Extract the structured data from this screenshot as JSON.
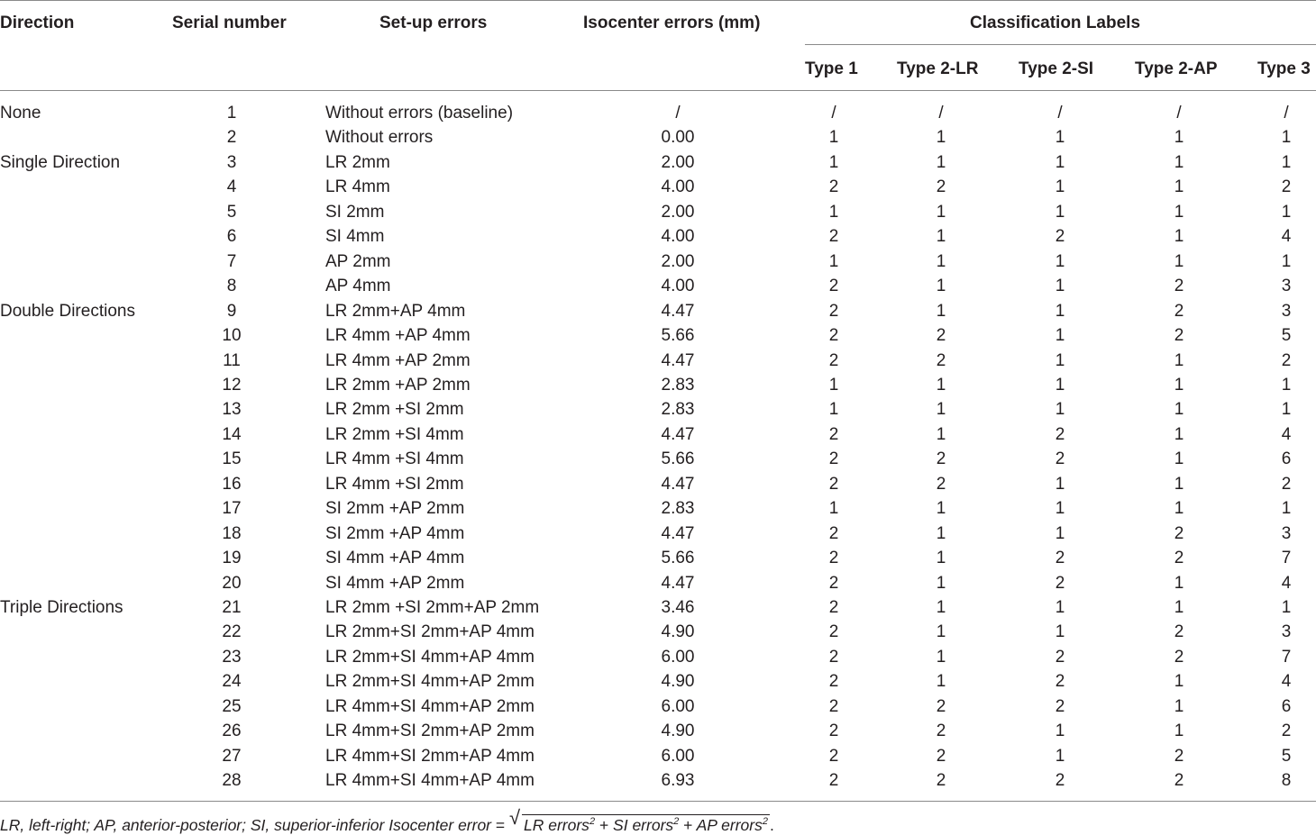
{
  "table": {
    "headers": {
      "direction": "Direction",
      "serial": "Serial number",
      "setup": "Set-up errors",
      "iso": "Isocenter errors (mm)",
      "classification": "Classification Labels",
      "type1": "Type 1",
      "type2lr": "Type 2-LR",
      "type2si": "Type 2-SI",
      "type2ap": "Type 2-AP",
      "type3": "Type 3"
    },
    "rows": [
      {
        "dir": "None",
        "sn": "1",
        "err": "Without errors (baseline)",
        "iso": "/",
        "t1": "/",
        "lr": "/",
        "si": "/",
        "ap": "/",
        "t3": "/"
      },
      {
        "dir": "",
        "sn": "2",
        "err": "Without errors",
        "iso": "0.00",
        "t1": "1",
        "lr": "1",
        "si": "1",
        "ap": "1",
        "t3": "1"
      },
      {
        "dir": "Single Direction",
        "sn": "3",
        "err": "LR 2mm",
        "iso": "2.00",
        "t1": "1",
        "lr": "1",
        "si": "1",
        "ap": "1",
        "t3": "1"
      },
      {
        "dir": "",
        "sn": "4",
        "err": "LR 4mm",
        "iso": "4.00",
        "t1": "2",
        "lr": "2",
        "si": "1",
        "ap": "1",
        "t3": "2"
      },
      {
        "dir": "",
        "sn": "5",
        "err": "SI 2mm",
        "iso": "2.00",
        "t1": "1",
        "lr": "1",
        "si": "1",
        "ap": "1",
        "t3": "1"
      },
      {
        "dir": "",
        "sn": "6",
        "err": "SI 4mm",
        "iso": "4.00",
        "t1": "2",
        "lr": "1",
        "si": "2",
        "ap": "1",
        "t3": "4"
      },
      {
        "dir": "",
        "sn": "7",
        "err": "AP 2mm",
        "iso": "2.00",
        "t1": "1",
        "lr": "1",
        "si": "1",
        "ap": "1",
        "t3": "1"
      },
      {
        "dir": "",
        "sn": "8",
        "err": "AP 4mm",
        "iso": "4.00",
        "t1": "2",
        "lr": "1",
        "si": "1",
        "ap": "2",
        "t3": "3"
      },
      {
        "dir": "Double Directions",
        "sn": "9",
        "err": "LR 2mm+AP 4mm",
        "iso": "4.47",
        "t1": "2",
        "lr": "1",
        "si": "1",
        "ap": "2",
        "t3": "3"
      },
      {
        "dir": "",
        "sn": "10",
        "err": "LR 4mm +AP 4mm",
        "iso": "5.66",
        "t1": "2",
        "lr": "2",
        "si": "1",
        "ap": "2",
        "t3": "5"
      },
      {
        "dir": "",
        "sn": "11",
        "err": "LR 4mm +AP 2mm",
        "iso": "4.47",
        "t1": "2",
        "lr": "2",
        "si": "1",
        "ap": "1",
        "t3": "2"
      },
      {
        "dir": "",
        "sn": "12",
        "err": "LR 2mm +AP 2mm",
        "iso": "2.83",
        "t1": "1",
        "lr": "1",
        "si": "1",
        "ap": "1",
        "t3": "1"
      },
      {
        "dir": "",
        "sn": "13",
        "err": "LR 2mm +SI 2mm",
        "iso": "2.83",
        "t1": "1",
        "lr": "1",
        "si": "1",
        "ap": "1",
        "t3": "1"
      },
      {
        "dir": "",
        "sn": "14",
        "err": "LR 2mm +SI 4mm",
        "iso": "4.47",
        "t1": "2",
        "lr": "1",
        "si": "2",
        "ap": "1",
        "t3": "4"
      },
      {
        "dir": "",
        "sn": "15",
        "err": "LR 4mm +SI 4mm",
        "iso": "5.66",
        "t1": "2",
        "lr": "2",
        "si": "2",
        "ap": "1",
        "t3": "6"
      },
      {
        "dir": "",
        "sn": "16",
        "err": "LR 4mm +SI 2mm",
        "iso": "4.47",
        "t1": "2",
        "lr": "2",
        "si": "1",
        "ap": "1",
        "t3": "2"
      },
      {
        "dir": "",
        "sn": "17",
        "err": "SI 2mm +AP 2mm",
        "iso": "2.83",
        "t1": "1",
        "lr": "1",
        "si": "1",
        "ap": "1",
        "t3": "1"
      },
      {
        "dir": "",
        "sn": "18",
        "err": "SI 2mm +AP 4mm",
        "iso": "4.47",
        "t1": "2",
        "lr": "1",
        "si": "1",
        "ap": "2",
        "t3": "3"
      },
      {
        "dir": "",
        "sn": "19",
        "err": "SI 4mm +AP 4mm",
        "iso": "5.66",
        "t1": "2",
        "lr": "1",
        "si": "2",
        "ap": "2",
        "t3": "7"
      },
      {
        "dir": "",
        "sn": "20",
        "err": "SI 4mm +AP 2mm",
        "iso": "4.47",
        "t1": "2",
        "lr": "1",
        "si": "2",
        "ap": "1",
        "t3": "4"
      },
      {
        "dir": "Triple Directions",
        "sn": "21",
        "err": "LR 2mm +SI 2mm+AP 2mm",
        "iso": "3.46",
        "t1": "2",
        "lr": "1",
        "si": "1",
        "ap": "1",
        "t3": "1"
      },
      {
        "dir": "",
        "sn": "22",
        "err": "LR 2mm+SI 2mm+AP 4mm",
        "iso": "4.90",
        "t1": "2",
        "lr": "1",
        "si": "1",
        "ap": "2",
        "t3": "3"
      },
      {
        "dir": "",
        "sn": "23",
        "err": "LR 2mm+SI 4mm+AP 4mm",
        "iso": "6.00",
        "t1": "2",
        "lr": "1",
        "si": "2",
        "ap": "2",
        "t3": "7"
      },
      {
        "dir": "",
        "sn": "24",
        "err": "LR 2mm+SI 4mm+AP 2mm",
        "iso": "4.90",
        "t1": "2",
        "lr": "1",
        "si": "2",
        "ap": "1",
        "t3": "4"
      },
      {
        "dir": "",
        "sn": "25",
        "err": "LR 4mm+SI 4mm+AP 2mm",
        "iso": "6.00",
        "t1": "2",
        "lr": "2",
        "si": "2",
        "ap": "1",
        "t3": "6"
      },
      {
        "dir": "",
        "sn": "26",
        "err": "LR 4mm+SI 2mm+AP 2mm",
        "iso": "4.90",
        "t1": "2",
        "lr": "2",
        "si": "1",
        "ap": "1",
        "t3": "2"
      },
      {
        "dir": "",
        "sn": "27",
        "err": "LR 4mm+SI 2mm+AP 4mm",
        "iso": "6.00",
        "t1": "2",
        "lr": "2",
        "si": "1",
        "ap": "2",
        "t3": "5"
      },
      {
        "dir": "",
        "sn": "28",
        "err": "LR 4mm+SI 4mm+AP 4mm",
        "iso": "6.93",
        "t1": "2",
        "lr": "2",
        "si": "2",
        "ap": "2",
        "t3": "8"
      }
    ]
  },
  "footnote": {
    "abbrev": "LR, left-right; AP, anterior-posterior; SI, superior-inferior",
    "formula_lhs": "Isocenter error",
    "eq": "=",
    "t1": "LR errors",
    "plus1": "+",
    "t2": "SI errors",
    "plus2": "+",
    "t3": "AP errors",
    "exp": "2",
    "end": "."
  }
}
